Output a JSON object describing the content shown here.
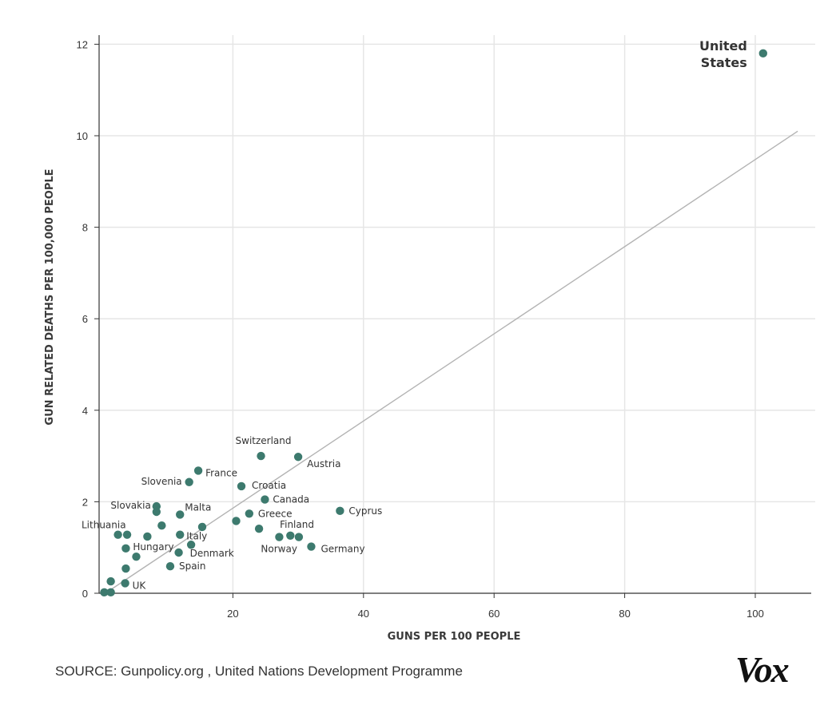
{
  "chart_data": {
    "type": "scatter",
    "title": "",
    "xlabel": "GUNS PER 100 PEOPLE",
    "ylabel": "GUN RELATED DEATHS PER 100,000 PEOPLE",
    "xlim": [
      0,
      108
    ],
    "ylim": [
      0,
      12.2
    ],
    "xticks": [
      "20",
      "40",
      "60",
      "80",
      "100"
    ],
    "yticks": [
      "0",
      "2",
      "4",
      "6",
      "8",
      "10",
      "12"
    ],
    "grid": true,
    "point_color": "#3d7a6e",
    "trendline": {
      "x": [
        1,
        106.5
      ],
      "y": [
        0.05,
        10.1
      ],
      "color": "#b3b3b3"
    },
    "points": [
      {
        "label": "United States",
        "x": 101.2,
        "y": 11.8
      },
      {
        "label": "Switzerland",
        "x": 24.3,
        "y": 3.0
      },
      {
        "label": "Austria",
        "x": 30.0,
        "y": 2.98
      },
      {
        "label": "France",
        "x": 14.7,
        "y": 2.68
      },
      {
        "label": "Slovenia",
        "x": 13.3,
        "y": 2.43
      },
      {
        "label": "Croatia",
        "x": 21.3,
        "y": 2.34
      },
      {
        "label": "Canada",
        "x": 24.9,
        "y": 2.05
      },
      {
        "label": "Slovakia",
        "x": 8.3,
        "y": 1.9
      },
      {
        "label": "",
        "x": 8.3,
        "y": 1.78
      },
      {
        "label": "Malta",
        "x": 11.9,
        "y": 1.72
      },
      {
        "label": "Cyprus",
        "x": 36.4,
        "y": 1.8
      },
      {
        "label": "Greece",
        "x": 22.5,
        "y": 1.74
      },
      {
        "label": "",
        "x": 20.5,
        "y": 1.58
      },
      {
        "label": "",
        "x": 9.1,
        "y": 1.48
      },
      {
        "label": "",
        "x": 15.3,
        "y": 1.45
      },
      {
        "label": "Finland",
        "x": 24.0,
        "y": 1.41
      },
      {
        "label": "Lithuania",
        "x": 2.4,
        "y": 1.28
      },
      {
        "label": "",
        "x": 3.8,
        "y": 1.28
      },
      {
        "label": "",
        "x": 6.9,
        "y": 1.24
      },
      {
        "label": "Italy",
        "x": 11.9,
        "y": 1.28
      },
      {
        "label": "Norway",
        "x": 27.1,
        "y": 1.23
      },
      {
        "label": "",
        "x": 28.8,
        "y": 1.26
      },
      {
        "label": "",
        "x": 30.1,
        "y": 1.23
      },
      {
        "label": "Hungary",
        "x": 3.6,
        "y": 0.98
      },
      {
        "label": "",
        "x": 13.6,
        "y": 1.06
      },
      {
        "label": "Denmark",
        "x": 11.7,
        "y": 0.89
      },
      {
        "label": "Germany",
        "x": 32.0,
        "y": 1.02
      },
      {
        "label": "",
        "x": 5.2,
        "y": 0.8
      },
      {
        "label": "Spain",
        "x": 10.4,
        "y": 0.59
      },
      {
        "label": "",
        "x": 3.6,
        "y": 0.54
      },
      {
        "label": "",
        "x": 1.3,
        "y": 0.26
      },
      {
        "label": "UK",
        "x": 3.5,
        "y": 0.22
      },
      {
        "label": "",
        "x": 0.3,
        "y": 0.02
      },
      {
        "label": "",
        "x": 1.3,
        "y": 0.02
      }
    ]
  },
  "footer": {
    "source": "SOURCE: Gunpolicy.org , United Nations Development Programme",
    "logo": "Vox"
  }
}
